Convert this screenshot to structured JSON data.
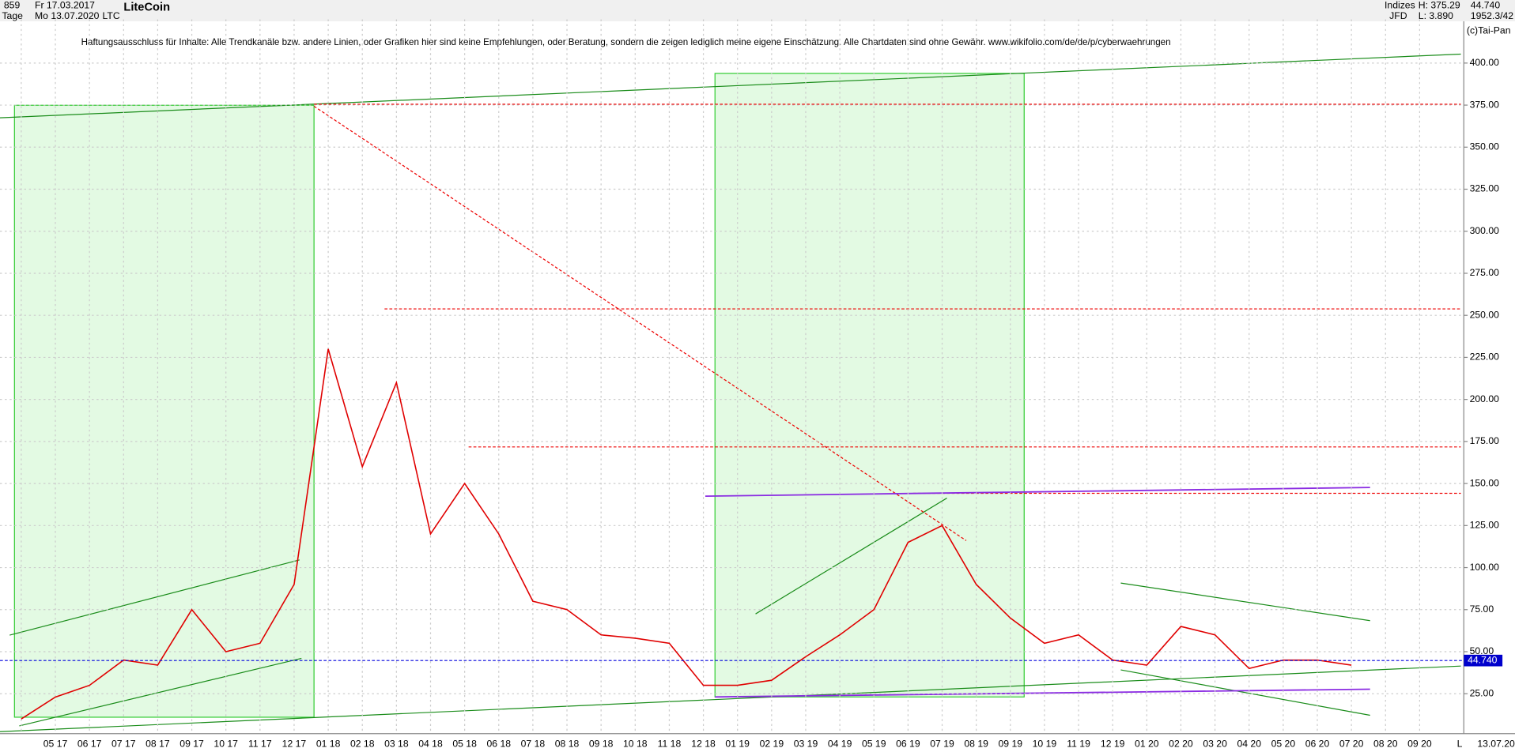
{
  "header": {
    "count": "859",
    "start_date": "Fr 17.03.2017",
    "period": "Tage",
    "end_date": "Mo 13.07.2020",
    "name": "LiteCoin",
    "symbol": "LTC",
    "group": "Indizes",
    "source": "JFD",
    "high": "H: 375.29",
    "low": "L: 3.890",
    "last": "44.740",
    "volume": "1952.3/42",
    "copyright": "(c)Tai-Pan",
    "disclaimer": "Haftungsausschluss für Inhalte: Alle Trendkanäle bzw. andere Linien, oder Grafiken hier sind keine Empfehlungen, oder Beratung, sondern die zeigen lediglich meine eigene Einschätzung. Alle Chartdaten sind ohne Gewähr.  www.wikifolio.com/de/de/p/cyberwaehrungen",
    "end_label": "13.07.20",
    "scale_mode": "L"
  },
  "chart_data": {
    "type": "line",
    "title": "LiteCoin",
    "categories": [
      null,
      "05 17",
      "06 17",
      "07 17",
      "08 17",
      "09 17",
      "10 17",
      "11 17",
      "12 17",
      "01 18",
      "02 18",
      "03 18",
      "04 18",
      "05 18",
      "06 18",
      "07 18",
      "08 18",
      "09 18",
      "10 18",
      "11 18",
      "12 18",
      "01 19",
      "02 19",
      "03 19",
      "04 19",
      "05 19",
      "06 19",
      "07 19",
      "08 19",
      "09 19",
      "10 19",
      "11 19",
      "12 19",
      "01 20",
      "02 20",
      "03 20",
      "04 20",
      "05 20",
      "06 20",
      "07 20",
      "08 20",
      "09 20"
    ],
    "series": [
      {
        "name": "LiteCoin",
        "color": "#e00000",
        "values": [
          10,
          23,
          30,
          45,
          42,
          75,
          50,
          55,
          90,
          230,
          160,
          210,
          120,
          150,
          120,
          80,
          75,
          60,
          58,
          55,
          30,
          30,
          33,
          47,
          60,
          75,
          115,
          125,
          90,
          70,
          55,
          60,
          45,
          42,
          65,
          60,
          40,
          45,
          45,
          42,
          null,
          null
        ]
      }
    ],
    "last_price": 44.74,
    "last_price_label": "44.740",
    "ylim": [
      3,
      426
    ],
    "yticks": [
      {
        "value": 25,
        "label": "25.00"
      },
      {
        "value": 50,
        "label": "50.00"
      },
      {
        "value": 75,
        "label": "75.00"
      },
      {
        "value": 100,
        "label": "100.00"
      },
      {
        "value": 125,
        "label": "125.00"
      },
      {
        "value": 150,
        "label": "150.00"
      },
      {
        "value": 175,
        "label": "175.00"
      },
      {
        "value": 200,
        "label": "200.00"
      },
      {
        "value": 225,
        "label": "225.00"
      },
      {
        "value": 250,
        "label": "250.00"
      },
      {
        "value": 275,
        "label": "275.00"
      },
      {
        "value": 300,
        "label": "300.00"
      },
      {
        "value": 325,
        "label": "325.00"
      },
      {
        "value": 350,
        "label": "350.00"
      },
      {
        "value": 375,
        "label": "375.00"
      },
      {
        "value": 400,
        "label": "400.00"
      }
    ],
    "grid": true
  }
}
